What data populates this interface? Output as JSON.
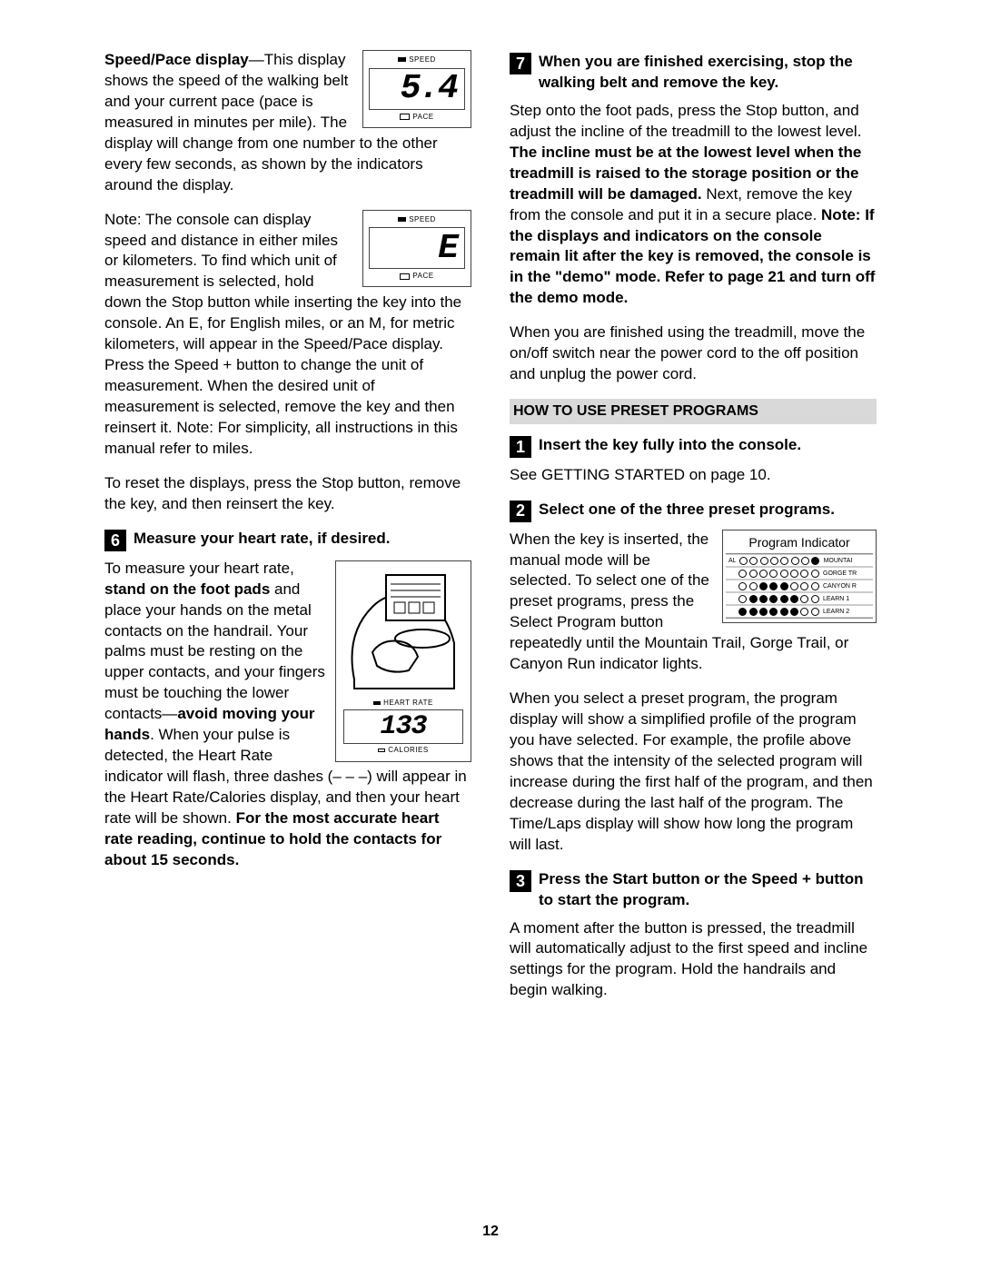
{
  "left": {
    "speed_display_heading": "Speed/Pace display",
    "speed_display_text_1": "—This display shows the speed of the walking belt and your current pace (pace is measured in minutes per",
    "speed_display_text_2": "mile). The display will change from one number to the other every few seconds, as shown by the indicators around the display.",
    "lcd1_top": "SPEED",
    "lcd1_value": "5.4",
    "lcd1_bot": "PACE",
    "note_text_1": "Note: The console can display speed and distance in either miles or kilometers. To find which unit of measurement is selected, hold",
    "lcd2_top": "SPEED",
    "lcd2_value": "E",
    "lcd2_bot": "PACE",
    "note_text_2": "down the Stop button while inserting the key into the console. An E, for English miles, or an M, for metric kilometers, will appear in the Speed/Pace display. Press the Speed + button to change the unit of measurement. When the desired unit of measurement is selected, remove the key and then reinsert it. Note: For simplicity, all instructions in this manual refer to miles.",
    "reset_text": "To reset the displays, press the Stop button, remove the key, and then reinsert the key.",
    "step6_num": "6",
    "step6_title": "Measure your heart rate, if desired.",
    "step6_text_1a": "To measure your heart rate, ",
    "step6_text_1b": "stand on the foot pads",
    "step6_text_1c": " and place your hands on the metal contacts on the handrail. Your palms must be resting on the upper contacts, and your fingers must be touching the lower contacts—",
    "step6_text_1d": "avoid",
    "step6_text_2a": "moving your hands",
    "step6_text_2b": ". When your pulse is detected, the Heart Rate indicator will flash, three dashes (– – –) will appear in the Heart Rate/Calories display, and then your heart rate will be shown. ",
    "step6_text_2c": "For the most accurate heart rate reading, continue to hold the contacts for about 15 seconds.",
    "hr_top": "HEART RATE",
    "hr_value": "133",
    "hr_bot": "CALORIES"
  },
  "right": {
    "step7_num": "7",
    "step7_title": "When you are finished exercising, stop the walking belt and remove the key.",
    "step7_text_1a": "Step onto the foot pads, press the Stop button, and adjust the incline of the treadmill to the lowest level. ",
    "step7_text_1b": "The incline must be at the lowest level when the treadmill is raised to the storage position or the treadmill will be damaged.",
    "step7_text_1c": " Next, remove the key from the console and put it in a secure place. ",
    "step7_text_1d": "Note: If the displays and indicators on the console remain lit after the key is removed, the console is in the \"demo\" mode. Refer to page 21 and turn off the demo mode.",
    "step7_text_2": "When you are finished using the treadmill, move the on/off switch near the power cord to the off position and unplug the power cord.",
    "section_title": "HOW TO USE PRESET PROGRAMS",
    "pstep1_num": "1",
    "pstep1_title": "Insert the key fully into the console.",
    "pstep1_text": "See GETTING STARTED on page 10.",
    "pstep2_num": "2",
    "pstep2_title": "Select one of the three preset programs.",
    "pstep2_text_1": "When the key is inserted, the manual mode will be selected. To select one of the preset programs, press the Select Program button repeatedly until the Mountain Trail, Gorge",
    "pstep2_text_1b": "Trail, or Canyon Run indicator lights.",
    "pstep2_text_2": "When you select a preset program, the program display will show a simplified profile of the program you have selected. For example, the profile above shows that the intensity of the selected program will increase during the first half of the program, and then decrease during the last half of the program. The Time/Laps display will show how long the program will last.",
    "prog_title": "Program Indicator",
    "prog_labels": [
      "MOUNTAI",
      "GORGE TR",
      "CANYON R",
      "LEARN 1",
      "LEARN 2"
    ],
    "prog_left_label": "AL",
    "pstep3_num": "3",
    "pstep3_title": "Press the Start button or the Speed + button to start the program.",
    "pstep3_text": "A moment after the button is pressed, the treadmill will automatically adjust to the first speed and incline settings for the program. Hold the handrails and begin walking."
  },
  "page_number": "12",
  "prog_pattern": [
    [
      0,
      0,
      0,
      0,
      0,
      0,
      0,
      1
    ],
    [
      0,
      0,
      0,
      0,
      0,
      0,
      0,
      0
    ],
    [
      0,
      0,
      1,
      1,
      1,
      0,
      0,
      0
    ],
    [
      0,
      1,
      1,
      1,
      1,
      1,
      0,
      0
    ],
    [
      1,
      1,
      1,
      1,
      1,
      1,
      0,
      0
    ]
  ]
}
